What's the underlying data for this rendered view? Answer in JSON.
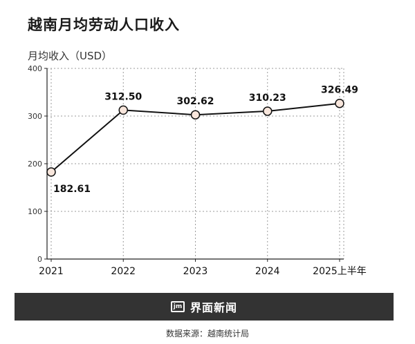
{
  "header": {
    "title": "越南月均劳动人口收入",
    "y_label": "月均收入（USD）"
  },
  "footer": {
    "logo_mark": "jm",
    "logo_text": "界面新闻",
    "source": "数据来源：越南统计局"
  },
  "colors": {
    "line": "#111111",
    "marker_fill": "#f8e6dc",
    "grid": "#9a9a9a",
    "axis": "#222222",
    "footer_bar": "#333333"
  },
  "chart_data": {
    "type": "line",
    "title": "越南月均劳动人口收入",
    "ylabel": "月均收入（USD）",
    "xlabel": "",
    "categories": [
      "2021",
      "2022",
      "2023",
      "2024",
      "2025上半年"
    ],
    "series": [
      {
        "values": [
          182.61,
          312.5,
          302.62,
          310.23,
          326.49
        ],
        "labels": [
          "182.61",
          "312.50",
          "302.62",
          "310.23",
          "326.49"
        ]
      }
    ],
    "ylim": [
      0,
      400
    ],
    "yticks": [
      0,
      100,
      200,
      300,
      400
    ],
    "grid": true
  }
}
